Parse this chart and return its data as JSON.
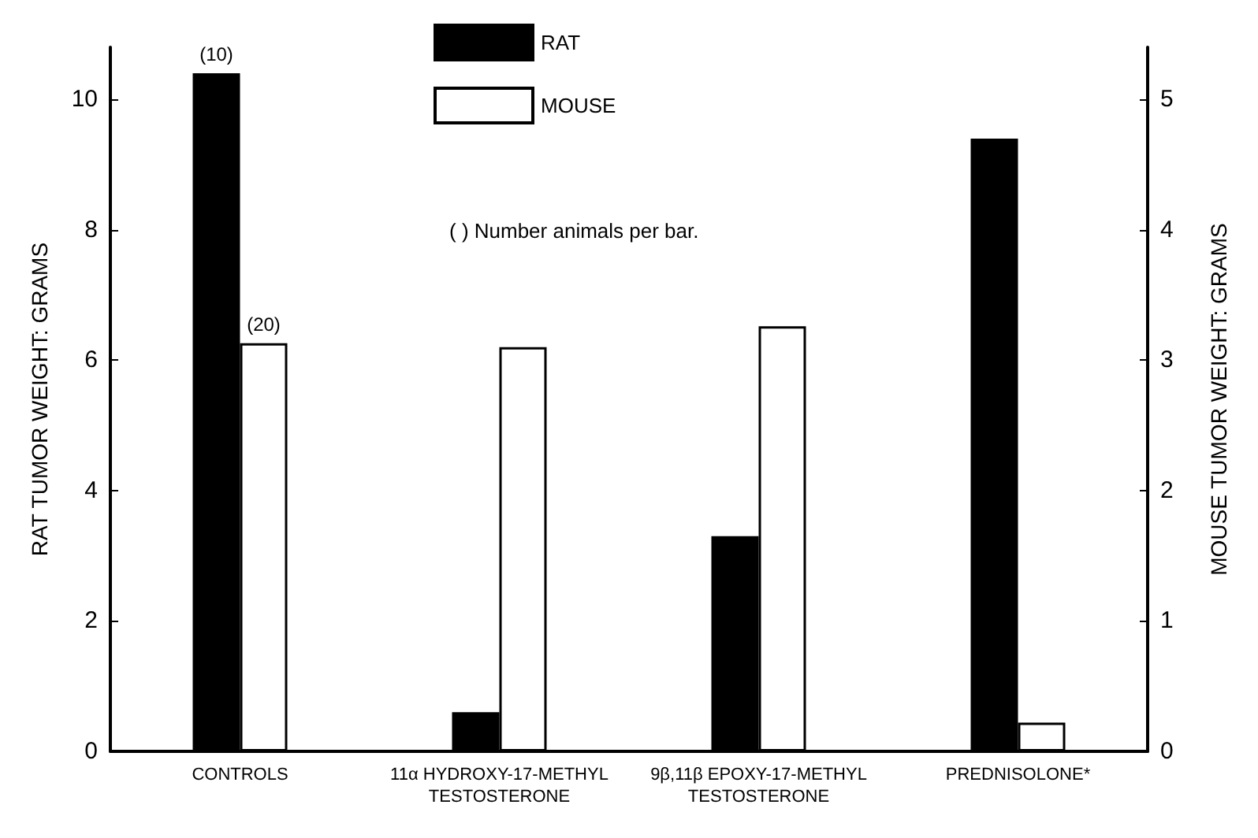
{
  "chart_data": {
    "type": "bar",
    "categories": [
      "CONTROLS",
      "11α HYDROXY-17-METHYL\nTESTOSTERONE",
      "9β,11β EPOXY-17-METHYL\nTESTOSTERONE",
      "PREDNISOLONE*"
    ],
    "series": [
      {
        "name": "RAT",
        "color": "#000000",
        "values": [
          10.4,
          0.6,
          3.3,
          9.4
        ]
      },
      {
        "name": "MOUSE",
        "color": "#ffffff",
        "axis": "y2",
        "values": [
          3.13,
          3.1,
          3.26,
          0.22
        ]
      }
    ],
    "ylabel": "RAT TUMOR WEIGHT: GRAMS",
    "y2label": "MOUSE TUMOR WEIGHT: GRAMS",
    "ylim": [
      0,
      10.8
    ],
    "yticks": [
      0,
      2,
      4,
      6,
      8,
      10
    ],
    "y2lim": [
      0,
      5.4
    ],
    "y2ticks": [
      0,
      1,
      2,
      3,
      4,
      5
    ],
    "annotations": [
      {
        "text": "(10)",
        "x": "CONTROLS",
        "y": 10.4
      },
      {
        "text": "(20)",
        "x": "CONTROLS",
        "y": 6.26
      },
      "( ) Number animals per bar."
    ],
    "grid": false,
    "legend": "top"
  }
}
